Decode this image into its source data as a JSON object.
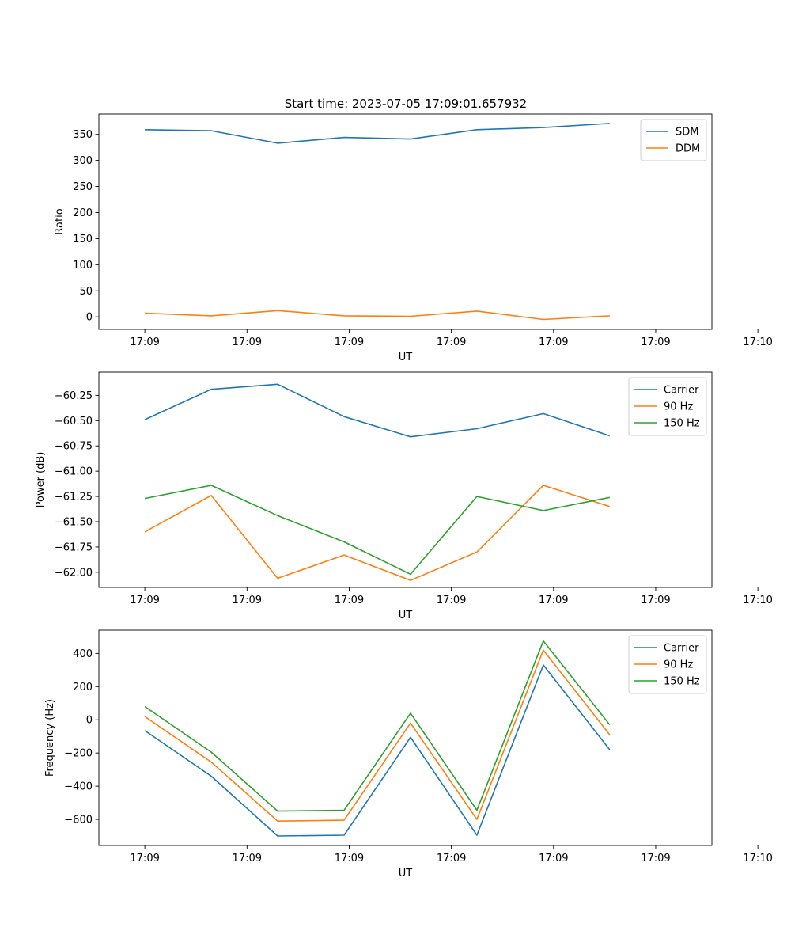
{
  "figure_title": "Start time: 2023-07-05 17:09:01.657932",
  "colors": {
    "series1": "#1f77b4",
    "series2": "#ff7f0e",
    "series3": "#2ca02c"
  },
  "chart_data": [
    {
      "type": "line",
      "title": "Start time: 2023-07-05 17:09:01.657932",
      "xlabel": "UT",
      "ylabel": "Ratio",
      "xlim": [
        -0.45,
        5.55
      ],
      "ylim": [
        -24,
        389
      ],
      "xticks": [
        0,
        1,
        2,
        3,
        4,
        5,
        6
      ],
      "xtick_labels": [
        "17:09",
        "17:09",
        "17:09",
        "17:09",
        "17:09",
        "17:09",
        "17:10"
      ],
      "yticks": [
        0,
        50,
        100,
        150,
        200,
        250,
        300,
        350
      ],
      "ytick_labels": [
        "0",
        "50",
        "100",
        "150",
        "200",
        "250",
        "300",
        "350"
      ],
      "x": [
        0.0,
        0.65,
        1.3,
        1.95,
        2.6,
        3.25,
        3.9,
        4.55
      ],
      "series": [
        {
          "name": "SDM",
          "color": "#1f77b4",
          "values": [
            359,
            357,
            333,
            344,
            341,
            359,
            363,
            371
          ]
        },
        {
          "name": "DDM",
          "color": "#ff7f0e",
          "values": [
            7,
            2,
            12,
            2,
            1,
            11,
            -5,
            2
          ]
        }
      ],
      "legend": "top-right"
    },
    {
      "type": "line",
      "title": "",
      "xlabel": "UT",
      "ylabel": "Power (dB)",
      "xlim": [
        -0.45,
        5.55
      ],
      "ylim": [
        -62.15,
        -60.02
      ],
      "xticks": [
        0,
        1,
        2,
        3,
        4,
        5,
        6
      ],
      "xtick_labels": [
        "17:09",
        "17:09",
        "17:09",
        "17:09",
        "17:09",
        "17:09",
        "17:10"
      ],
      "yticks": [
        -62.0,
        -61.75,
        -61.5,
        -61.25,
        -61.0,
        -60.75,
        -60.5,
        -60.25
      ],
      "ytick_labels": [
        "−62.00",
        "−61.75",
        "−61.50",
        "−61.25",
        "−61.00",
        "−60.75",
        "−60.50",
        "−60.25"
      ],
      "x": [
        0.0,
        0.65,
        1.3,
        1.95,
        2.6,
        3.25,
        3.9,
        4.55
      ],
      "series": [
        {
          "name": "Carrier",
          "color": "#1f77b4",
          "values": [
            -60.49,
            -60.19,
            -60.14,
            -60.46,
            -60.66,
            -60.58,
            -60.43,
            -60.65
          ]
        },
        {
          "name": "90 Hz",
          "color": "#ff7f0e",
          "values": [
            -61.6,
            -61.24,
            -62.06,
            -61.83,
            -62.08,
            -61.8,
            -61.14,
            -61.35
          ]
        },
        {
          "name": "150 Hz",
          "color": "#2ca02c",
          "values": [
            -61.27,
            -61.14,
            -61.44,
            -61.7,
            -62.02,
            -61.25,
            -61.39,
            -61.26
          ]
        }
      ],
      "legend": "top-right"
    },
    {
      "type": "line",
      "title": "",
      "xlabel": "UT",
      "ylabel": "Frequency (Hz)",
      "xlim": [
        -0.45,
        5.55
      ],
      "ylim": [
        -757,
        540
      ],
      "xticks": [
        0,
        1,
        2,
        3,
        4,
        5,
        6
      ],
      "xtick_labels": [
        "17:09",
        "17:09",
        "17:09",
        "17:09",
        "17:09",
        "17:09",
        "17:10"
      ],
      "yticks": [
        -600,
        -400,
        -200,
        0,
        200,
        400
      ],
      "ytick_labels": [
        "−600",
        "−400",
        "−200",
        "0",
        "200",
        "400"
      ],
      "x": [
        0.0,
        0.65,
        1.3,
        1.95,
        2.6,
        3.25,
        3.9,
        4.55
      ],
      "series": [
        {
          "name": "Carrier",
          "color": "#1f77b4",
          "values": [
            -65,
            -340,
            -700,
            -695,
            -105,
            -695,
            330,
            -180
          ]
        },
        {
          "name": "90 Hz",
          "color": "#ff7f0e",
          "values": [
            20,
            -255,
            -610,
            -605,
            -20,
            -600,
            420,
            -90
          ]
        },
        {
          "name": "150 Hz",
          "color": "#2ca02c",
          "values": [
            80,
            -195,
            -550,
            -545,
            40,
            -545,
            475,
            -30
          ]
        }
      ],
      "legend": "top-right"
    }
  ]
}
